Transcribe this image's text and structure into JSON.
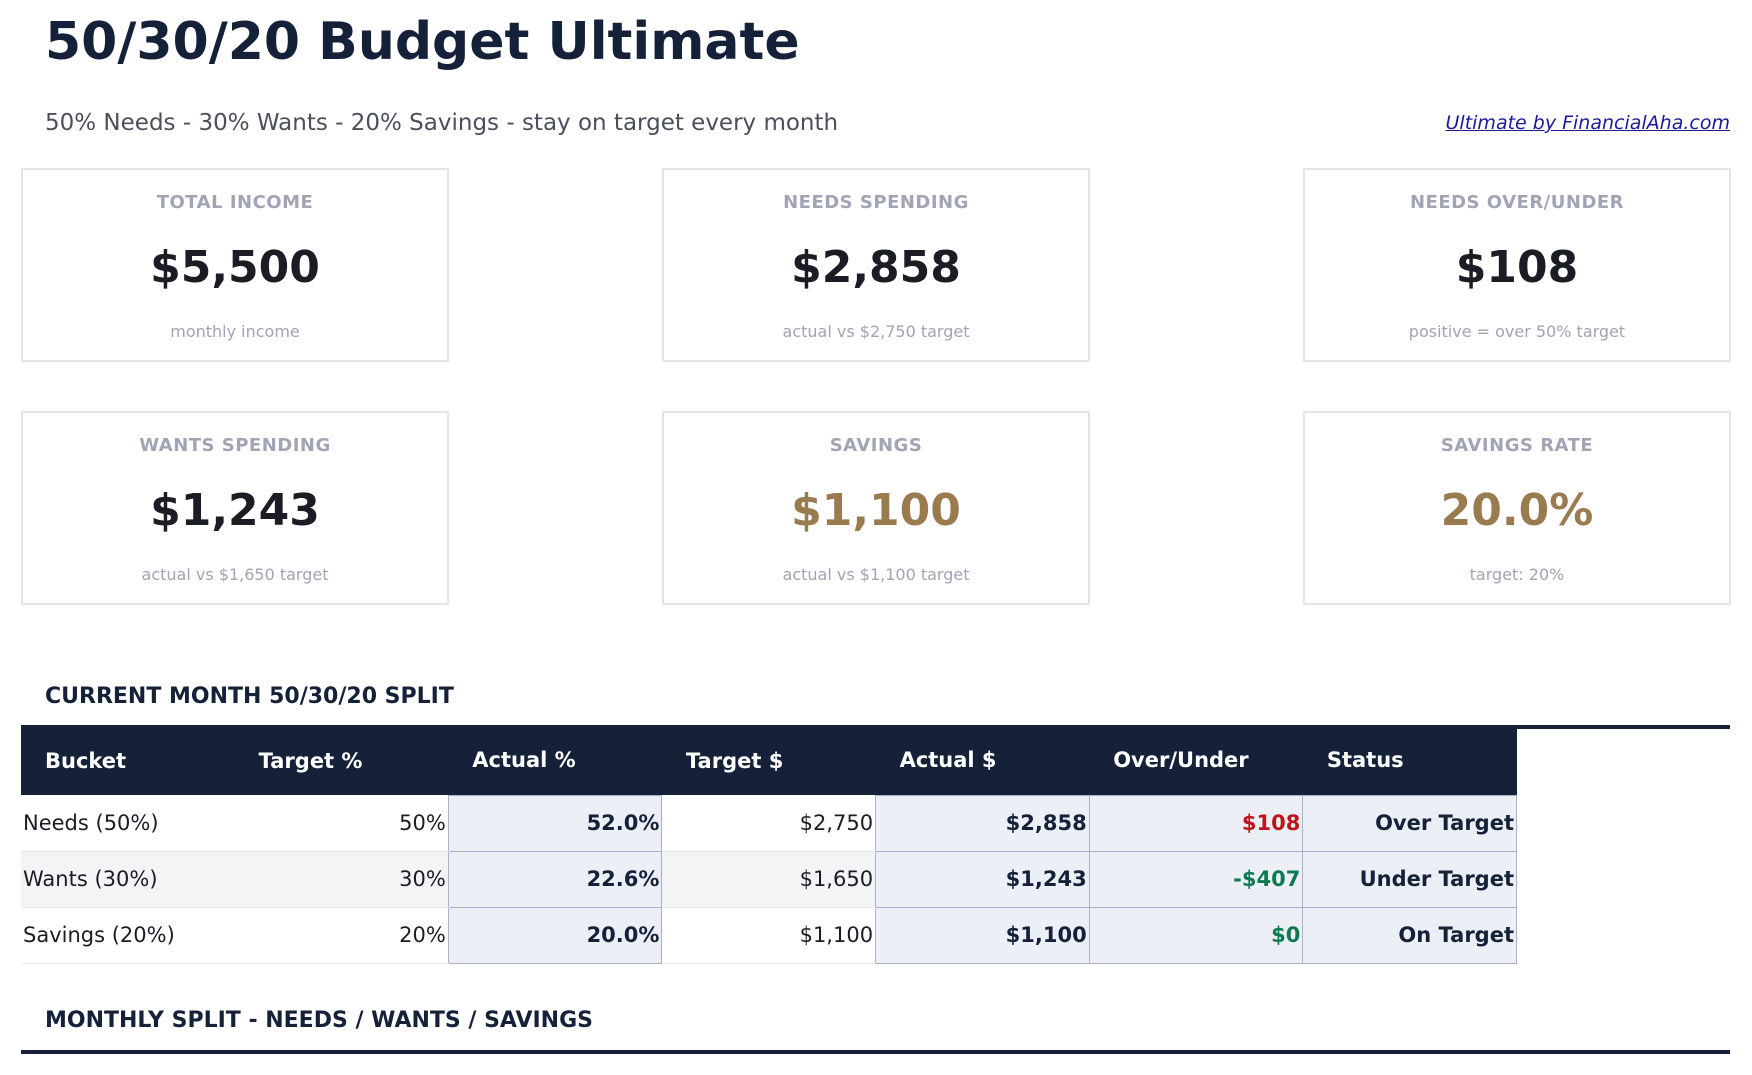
{
  "header": {
    "title": "50/30/20 Budget Ultimate",
    "subtitle": "50% Needs - 30% Wants - 20% Savings - stay on target every month",
    "credit": "Ultimate by FinancialAha.com"
  },
  "cards": [
    {
      "label": "TOTAL INCOME",
      "value": "$5,500",
      "sub": "monthly income"
    },
    {
      "label": "NEEDS SPENDING",
      "value": "$2,858",
      "sub": "actual vs $2,750 target"
    },
    {
      "label": "NEEDS OVER/UNDER",
      "value": "$108",
      "sub": "positive = over 50% target"
    },
    {
      "label": "WANTS SPENDING",
      "value": "$1,243",
      "sub": "actual vs $1,650 target"
    },
    {
      "label": "SAVINGS",
      "value": "$1,100",
      "sub": "actual vs $1,100 target"
    },
    {
      "label": "SAVINGS RATE",
      "value": "20.0%",
      "sub": "target: 20%"
    }
  ],
  "split": {
    "heading": "CURRENT MONTH 50/30/20 SPLIT",
    "columns": [
      "Bucket",
      "Target %",
      "Actual %",
      "Target $",
      "Actual $",
      "Over/Under",
      "Status"
    ],
    "rows": [
      [
        "Needs (50%)",
        "50%",
        "52.0%",
        "$2,750",
        "$2,858",
        "$108",
        "Over Target"
      ],
      [
        "Wants (30%)",
        "30%",
        "22.6%",
        "$1,650",
        "$1,243",
        "-$407",
        "Under Target"
      ],
      [
        "Savings (20%)",
        "20%",
        "20.0%",
        "$1,100",
        "$1,100",
        "$0",
        "On Target"
      ]
    ]
  },
  "monthly": {
    "heading": "MONTHLY SPLIT - NEEDS / WANTS / SAVINGS"
  },
  "colors": {
    "navy": "#152039",
    "gold": "#9a7b4f",
    "over": "#c0141c",
    "under": "#0e7a50"
  }
}
